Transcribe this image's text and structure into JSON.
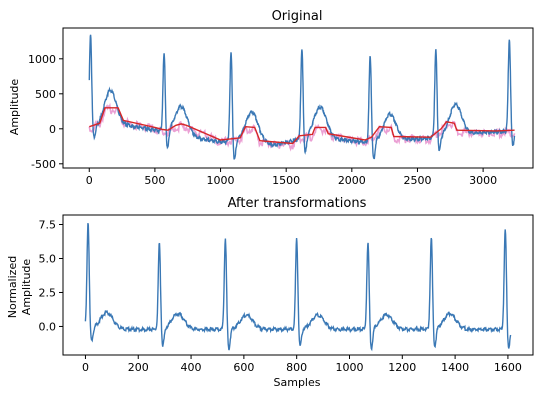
{
  "chart_data": [
    {
      "type": "line",
      "title": "Original",
      "xlabel": "",
      "ylabel": "Amplitude",
      "xlim": [
        -200,
        3380
      ],
      "ylim": [
        -560,
        1440
      ],
      "xticks": [
        0,
        500,
        1000,
        1500,
        2000,
        2500,
        3000
      ],
      "yticks": [
        -500,
        0,
        500,
        1000
      ],
      "grid": false,
      "colors": {
        "signal": "#3a78b5",
        "baseline": "#d62728",
        "envelope": "#e377c2"
      },
      "series": [
        {
          "role": "signal",
          "r_peaks": [
            {
              "x": 10,
              "y": 1370,
              "neg": -150
            },
            {
              "x": 570,
              "y": 1080,
              "neg": -340
            },
            {
              "x": 1080,
              "y": 1100,
              "neg": -480
            },
            {
              "x": 1620,
              "y": 1150,
              "neg": -400
            },
            {
              "x": 2140,
              "y": 1060,
              "neg": -480
            },
            {
              "x": 2640,
              "y": 1140,
              "neg": -350
            },
            {
              "x": 3200,
              "y": 1310,
              "neg": -250
            }
          ],
          "t_waves": [
            {
              "x": 160,
              "y": 560
            },
            {
              "x": 700,
              "y": 330
            },
            {
              "x": 1240,
              "y": 250
            },
            {
              "x": 1760,
              "y": 320
            },
            {
              "x": 2290,
              "y": 220
            },
            {
              "x": 2790,
              "y": 360
            }
          ],
          "baseline_points": [
            [
              0,
              0
            ],
            [
              300,
              60
            ],
            [
              550,
              -20
            ],
            [
              1000,
              -180
            ],
            [
              1200,
              -140
            ],
            [
              1400,
              -220
            ],
            [
              1700,
              -100
            ],
            [
              2100,
              -180
            ],
            [
              2600,
              -120
            ],
            [
              3000,
              -40
            ],
            [
              3240,
              -20
            ]
          ]
        },
        {
          "role": "baseline",
          "points": [
            [
              0,
              30
            ],
            [
              80,
              80
            ],
            [
              120,
              300
            ],
            [
              220,
              300
            ],
            [
              260,
              120
            ],
            [
              500,
              20
            ],
            [
              560,
              -10
            ],
            [
              600,
              -20
            ],
            [
              660,
              50
            ],
            [
              700,
              70
            ],
            [
              740,
              50
            ],
            [
              1000,
              -160
            ],
            [
              1150,
              -130
            ],
            [
              1190,
              30
            ],
            [
              1260,
              20
            ],
            [
              1300,
              -170
            ],
            [
              1550,
              -210
            ],
            [
              1600,
              -100
            ],
            [
              1700,
              -80
            ],
            [
              1720,
              20
            ],
            [
              1800,
              20
            ],
            [
              1820,
              -70
            ],
            [
              2100,
              -160
            ],
            [
              2150,
              -120
            ],
            [
              2210,
              30
            ],
            [
              2300,
              20
            ],
            [
              2320,
              -110
            ],
            [
              2600,
              -120
            ],
            [
              2680,
              0
            ],
            [
              2720,
              100
            ],
            [
              2780,
              80
            ],
            [
              2800,
              -20
            ],
            [
              3100,
              -30
            ],
            [
              3240,
              -20
            ]
          ]
        }
      ]
    },
    {
      "type": "line",
      "title": "After transformations",
      "xlabel": "Samples",
      "ylabel": "Normalized\nAmplitude",
      "ylabel_lines": [
        "Normalized",
        "Amplitude"
      ],
      "xlim": [
        -85,
        1695
      ],
      "ylim": [
        -2.1,
        8.2
      ],
      "xticks": [
        0,
        200,
        400,
        600,
        800,
        1000,
        1200,
        1400,
        1600
      ],
      "yticks": [
        0.0,
        2.5,
        5.0,
        7.5
      ],
      "grid": false,
      "colors": {
        "signal": "#3a78b5"
      },
      "series": [
        {
          "role": "signal",
          "r_peaks": [
            {
              "x": 10,
              "y": 7.8,
              "neg": -1.2
            },
            {
              "x": 280,
              "y": 6.2,
              "neg": -1.6
            },
            {
              "x": 530,
              "y": 6.6,
              "neg": -1.8
            },
            {
              "x": 800,
              "y": 6.6,
              "neg": -1.6
            },
            {
              "x": 1070,
              "y": 6.3,
              "neg": -1.8
            },
            {
              "x": 1310,
              "y": 6.6,
              "neg": -1.6
            },
            {
              "x": 1590,
              "y": 7.2,
              "neg": -1.7
            }
          ],
          "t_waves": [
            {
              "x": 80,
              "y": 1.1
            },
            {
              "x": 350,
              "y": 1.0
            },
            {
              "x": 610,
              "y": 0.9
            },
            {
              "x": 880,
              "y": 0.9
            },
            {
              "x": 1140,
              "y": 0.9
            },
            {
              "x": 1380,
              "y": 1.0
            }
          ],
          "baseline_level": -0.15
        }
      ]
    }
  ]
}
